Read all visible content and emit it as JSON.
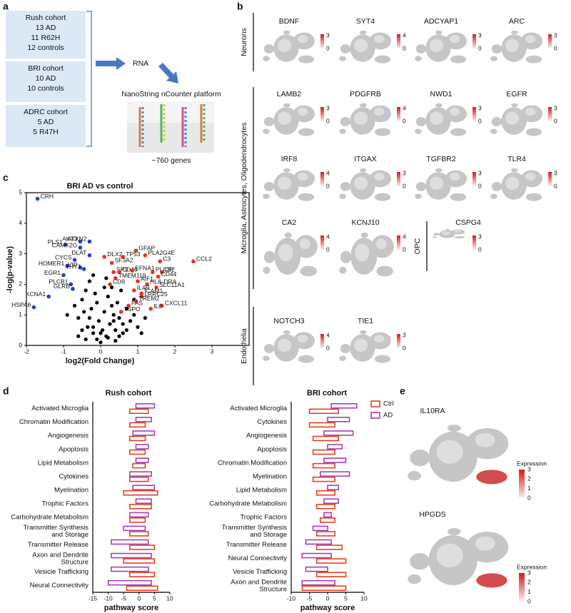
{
  "panel_letters": [
    "a",
    "b",
    "c",
    "d",
    "e"
  ],
  "panel_a": {
    "boxes": [
      {
        "lines": [
          "Rush cohort",
          "13 AD",
          "11 R62H",
          "12 controls"
        ]
      },
      {
        "lines": [
          "BRI cohort",
          "10 AD",
          "10 controls"
        ]
      },
      {
        "lines": [
          "ADRC cohort",
          "5 AD",
          "5 R47H"
        ]
      }
    ],
    "rna": "RNA",
    "platform": "NanoString nCounter platform",
    "genes": "~760 genes"
  },
  "panel_b": {
    "groups": [
      "Neurons",
      "Microglia, Astrocytes, Oligodendrocytes",
      "OPC",
      "Endothelia"
    ],
    "genes": [
      {
        "name": "BDNF",
        "max": 3,
        "min": 0
      },
      {
        "name": "SYT4",
        "max": 4,
        "min": 0
      },
      {
        "name": "ADCYAP1",
        "max": 3,
        "min": 0
      },
      {
        "name": "ARC",
        "max": 3,
        "min": 0
      },
      {
        "name": "LAMB2",
        "max": 3,
        "min": 0
      },
      {
        "name": "PDGFRB",
        "max": 4,
        "min": 0
      },
      {
        "name": "NWD1",
        "max": 3,
        "min": 0
      },
      {
        "name": "EGFR",
        "max": 3,
        "min": 0
      },
      {
        "name": "IRF8",
        "max": 4,
        "min": 0
      },
      {
        "name": "ITGAX",
        "max": 3,
        "min": 0
      },
      {
        "name": "TGFBR2",
        "max": 3,
        "min": 0
      },
      {
        "name": "TLR4",
        "max": 3,
        "min": 0
      },
      {
        "name": "CA2",
        "max": 4,
        "min": 0
      },
      {
        "name": "KCNJ10",
        "max": 4,
        "min": 0
      },
      {
        "name": "CSPG4",
        "max": 3,
        "min": 0
      },
      {
        "name": "NOTCH3",
        "max": 4,
        "min": 0
      },
      {
        "name": "TIE1",
        "max": 3,
        "min": 0
      }
    ]
  },
  "chart_data": [
    {
      "type": "scatter",
      "title": "BRI AD vs control",
      "xlabel": "log2(Fold Change)",
      "ylabel": "-log(p-value)",
      "xlim": [
        -2,
        4
      ],
      "xticks": [
        -2,
        -1,
        0,
        1,
        2,
        3
      ],
      "ylim": [
        0,
        5
      ],
      "yticks": [
        0,
        1,
        2,
        3,
        4,
        5
      ],
      "color": "#000000",
      "x": [
        -0.9,
        -0.7,
        -0.6,
        -0.5,
        -0.4,
        -0.35,
        -0.3,
        -0.25,
        -0.2,
        -0.15,
        -0.1,
        -0.05,
        0,
        0.05,
        0.1,
        0.15,
        0.2,
        0.25,
        0.3,
        0.35,
        0.4,
        0.45,
        0.5,
        0.55,
        0.6,
        0.7,
        0.8,
        0.9,
        1.0,
        1.2,
        -0.6,
        -0.4,
        -0.2,
        0,
        0.2,
        0.4,
        0.6,
        -0.3,
        -0.1,
        0.1,
        0.3,
        0.5,
        -0.5,
        0.7,
        -0.2,
        0.15,
        0.35,
        -0.45,
        0.9,
        1.1
      ],
      "y": [
        1.0,
        1.3,
        0.9,
        1.5,
        1.8,
        0.6,
        2.1,
        1.2,
        0.4,
        1.7,
        0.2,
        0.8,
        0.1,
        0.5,
        1.1,
        0.3,
        1.6,
        0.7,
        1.9,
        1.0,
        0.5,
        1.4,
        0.9,
        1.8,
        0.4,
        1.2,
        0.8,
        1.0,
        0.6,
        0.9,
        0.3,
        0.2,
        0.6,
        0.4,
        0.25,
        0.15,
        0.7,
        0.9,
        1.4,
        1.9,
        1.3,
        0.3,
        0.5,
        0.5,
        2.3,
        2.2,
        0.8,
        1.1,
        1.5,
        0.4
      ],
      "labeled": [
        {
          "label": "CRH",
          "x": -1.7,
          "y": 4.8,
          "color": "#1f3fd0"
        },
        {
          "label": "AKT3",
          "x": -0.55,
          "y": 3.4,
          "color": "#1f3fd0"
        },
        {
          "label": "ATXN2",
          "x": -0.3,
          "y": 3.4,
          "color": "#1f3fd0"
        },
        {
          "label": "PLS1",
          "x": -0.95,
          "y": 3.3,
          "color": "#1f3fd0"
        },
        {
          "label": "CAMK2G",
          "x": -0.55,
          "y": 3.2,
          "color": "#1f3fd0"
        },
        {
          "label": "DLAT",
          "x": -0.3,
          "y": 2.95,
          "color": "#1f3fd0"
        },
        {
          "label": "CYCS",
          "x": -0.7,
          "y": 2.8,
          "color": "#1f3fd0"
        },
        {
          "label": "HOMER1",
          "x": -0.9,
          "y": 2.6,
          "color": "#1f3fd0"
        },
        {
          "label": "VIP",
          "x": -0.55,
          "y": 2.55,
          "color": "#1f3fd0"
        },
        {
          "label": "THY1",
          "x": -0.45,
          "y": 2.5,
          "color": "#1f3fd0"
        },
        {
          "label": "EGR1",
          "x": -1.0,
          "y": 2.3,
          "color": "#1f3fd0"
        },
        {
          "label": "PLCB1",
          "x": -0.8,
          "y": 2.0,
          "color": "#1f3fd0"
        },
        {
          "label": "GLRB",
          "x": -0.75,
          "y": 1.85,
          "color": "#1f3fd0"
        },
        {
          "label": "KCNA1",
          "x": -1.4,
          "y": 1.6,
          "color": "#1f3fd0"
        },
        {
          "label": "HSPA6",
          "x": -1.8,
          "y": 1.25,
          "color": "#1f3fd0"
        },
        {
          "label": "DLX2",
          "x": 0.1,
          "y": 2.9,
          "color": "#e8301e"
        },
        {
          "label": "GFAP",
          "x": 0.95,
          "y": 3.1,
          "color": "#e8301e"
        },
        {
          "label": "TP53",
          "x": 0.6,
          "y": 2.9,
          "color": "#e8301e"
        },
        {
          "label": "PLA2G4E",
          "x": 1.2,
          "y": 2.95,
          "color": "#e8301e"
        },
        {
          "label": "C3",
          "x": 1.6,
          "y": 2.75,
          "color": "#e8301e"
        },
        {
          "label": "CCL2",
          "x": 2.5,
          "y": 2.75,
          "color": "#e8301e"
        },
        {
          "label": "SF3A2",
          "x": 0.3,
          "y": 2.7,
          "color": "#e8301e"
        },
        {
          "label": "SP1",
          "x": 0.35,
          "y": 2.4,
          "color": "#e8301e"
        },
        {
          "label": "CD40",
          "x": 0.5,
          "y": 2.4,
          "color": "#e8301e"
        },
        {
          "label": "EFNA1",
          "x": 0.85,
          "y": 2.45,
          "color": "#e8301e"
        },
        {
          "label": "PLCB2",
          "x": 1.4,
          "y": 2.4,
          "color": "#e8301e"
        },
        {
          "label": "CP",
          "x": 1.65,
          "y": 2.4,
          "color": "#e8301e"
        },
        {
          "label": "CD44",
          "x": 1.55,
          "y": 2.25,
          "color": "#e8301e"
        },
        {
          "label": "TMEM119",
          "x": 0.4,
          "y": 2.2,
          "color": "#e8301e"
        },
        {
          "label": "AIF1",
          "x": 1.0,
          "y": 2.1,
          "color": "#e8301e"
        },
        {
          "label": "HLA-DRA",
          "x": 1.25,
          "y": 2.0,
          "color": "#e8301e"
        },
        {
          "label": "CD9",
          "x": 0.25,
          "y": 2.0,
          "color": "#e8301e"
        },
        {
          "label": "SLC11A1",
          "x": 1.5,
          "y": 1.9,
          "color": "#e8301e"
        },
        {
          "label": "IL4R",
          "x": 0.9,
          "y": 1.8,
          "color": "#e8301e"
        },
        {
          "label": "ICAM1",
          "x": 1.1,
          "y": 1.7,
          "color": "#e8301e"
        },
        {
          "label": "LRRC25",
          "x": 1.1,
          "y": 1.6,
          "color": "#e8301e"
        },
        {
          "label": "TREM2",
          "x": 0.95,
          "y": 1.45,
          "color": "#e8301e"
        },
        {
          "label": "CXCL11",
          "x": 1.65,
          "y": 1.3,
          "color": "#e8301e"
        },
        {
          "label": "FAS",
          "x": 0.75,
          "y": 1.3,
          "color": "#e8301e"
        },
        {
          "label": "IL6",
          "x": 1.35,
          "y": 1.2,
          "color": "#e8301e"
        },
        {
          "label": "TSPO",
          "x": 0.55,
          "y": 1.1,
          "color": "#e8301e"
        }
      ]
    },
    {
      "type": "bar",
      "orientation": "horizontal",
      "title": "Rush cohort",
      "xlabel": "pathway score",
      "xlim": [
        -15,
        10
      ],
      "xticks": [
        -15,
        -10,
        -5,
        0,
        5,
        10
      ],
      "categories": [
        "Activated Microglia",
        "Chromatin Modification",
        "Angiogenesis",
        "Apoptosis",
        "Lipid Metabolism",
        "Cytokines",
        "Myelination",
        "Trophic Factors",
        "Carbohydrate Metabolism",
        "Transmitter Synthesis and Storage",
        "Transmitter Release",
        "Axon and Dendrite Structure",
        "Vesicle Trafficking",
        "Neural Connectivity"
      ],
      "series": [
        {
          "color": "#e8401c",
          "values": [
            [
              -3,
              3
            ],
            [
              -3,
              2
            ],
            [
              -3,
              2
            ],
            [
              -3,
              2
            ],
            [
              -2,
              2
            ],
            [
              -3,
              3
            ],
            [
              -5,
              6
            ],
            [
              -3,
              4
            ],
            [
              -3,
              2
            ],
            [
              -3,
              3
            ],
            [
              -3,
              5
            ],
            [
              -5,
              5
            ],
            [
              -3,
              5
            ],
            [
              -4,
              6
            ]
          ]
        },
        {
          "color": "#a83fb5",
          "values": [
            [
              -1,
              5
            ],
            [
              -1,
              4
            ],
            [
              -2,
              5
            ],
            [
              -1,
              3
            ],
            [
              -1,
              3
            ],
            [
              -3,
              4
            ],
            [
              -2,
              5
            ],
            [
              -1,
              4
            ],
            [
              -3,
              3
            ],
            [
              -5,
              2
            ],
            [
              -9,
              3
            ],
            [
              -9,
              4
            ],
            [
              -9,
              3
            ],
            [
              -10,
              4
            ]
          ]
        }
      ]
    },
    {
      "type": "bar",
      "orientation": "horizontal",
      "title": "BRI cohort",
      "xlabel": "pathway score",
      "xlim": [
        -10,
        10
      ],
      "xticks": [
        -10,
        -5,
        0,
        5,
        10
      ],
      "legend": "top-right",
      "categories": [
        "Activated Microglia",
        "Cytokines",
        "Angiogenesis",
        "Apoptosis",
        "Chromatin Modification",
        "Myelination",
        "Lipid Metabolism",
        "Carbohydrate Metabolism",
        "Trophic Factors",
        "Transmitter Synthesis and Storage",
        "Transmitter Release",
        "Neural Connectivity",
        "Vesicle Trafficking",
        "Axon and Dendrite Structure"
      ],
      "series": [
        {
          "name": "Ctrl",
          "color": "#e8401c",
          "values": [
            [
              -5,
              3
            ],
            [
              -5,
              2
            ],
            [
              -4,
              3
            ],
            [
              -4,
              2
            ],
            [
              -4,
              2
            ],
            [
              -4,
              2
            ],
            [
              -3,
              2
            ],
            [
              -3,
              2
            ],
            [
              -2,
              2
            ],
            [
              -3,
              2
            ],
            [
              -3,
              4
            ],
            [
              -3,
              5
            ],
            [
              -3,
              5
            ],
            [
              -7,
              5
            ]
          ]
        },
        {
          "name": "AD",
          "color": "#a83fb5",
          "values": [
            [
              1,
              8
            ],
            [
              0,
              6
            ],
            [
              -1,
              7
            ],
            [
              0,
              4
            ],
            [
              -1,
              5
            ],
            [
              -2,
              6
            ],
            [
              0,
              3
            ],
            [
              -1,
              3
            ],
            [
              -1,
              1
            ],
            [
              -4,
              0
            ],
            [
              -6,
              1
            ],
            [
              -7,
              1
            ],
            [
              -6,
              0
            ],
            [
              -7,
              2
            ]
          ]
        }
      ]
    }
  ],
  "panel_e": {
    "genes": [
      {
        "name": "IL10RA",
        "legend_title": "Expression",
        "ticks": [
          3,
          2,
          1,
          0
        ]
      },
      {
        "name": "HPGDS",
        "legend_title": "Expression",
        "ticks": [
          3,
          2,
          1,
          0
        ]
      }
    ]
  }
}
